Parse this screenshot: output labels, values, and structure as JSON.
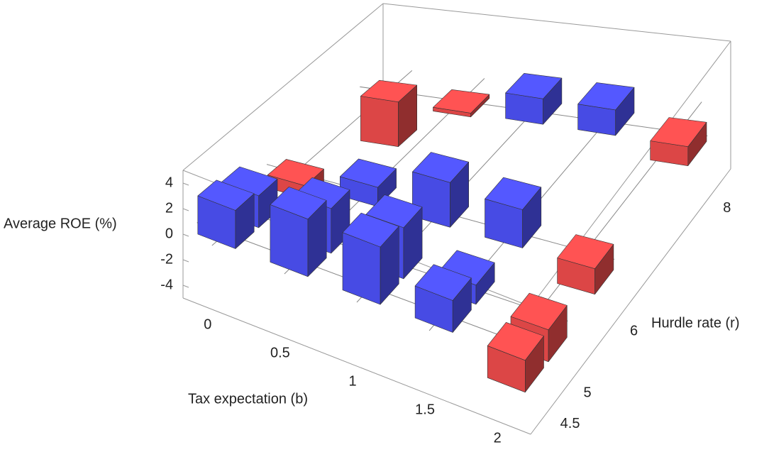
{
  "chart_data": {
    "type": "bar3d",
    "x_label": "Tax expectation (b)",
    "y_label": "Hurdle rate (r)",
    "z_label": "Average ROE (%)",
    "x": [
      0,
      0.5,
      1,
      1.5,
      2,
      0,
      0.5,
      1,
      1.5,
      2,
      0,
      0.5,
      1,
      1.5,
      2,
      0,
      0.5,
      1,
      1.5,
      2
    ],
    "y": [
      4.5,
      4.5,
      4.5,
      4.5,
      4.5,
      5,
      5,
      5,
      5,
      5,
      6,
      6,
      6,
      6,
      6,
      8,
      8,
      8,
      8,
      8
    ],
    "values": [
      3,
      4.5,
      4.5,
      2.5,
      -2.5,
      2.5,
      3.5,
      4,
      1.5,
      -2.5,
      -1,
      1.5,
      3.5,
      3,
      -2,
      -3.5,
      -0.3,
      2,
      2,
      -1.5
    ],
    "positive_color": "#4b4ff0",
    "negative_color": "#e84a4a",
    "xlim": [
      -0.2,
      2.2
    ],
    "ylim": [
      4.2,
      8.5
    ],
    "zlim": [
      -5,
      5
    ],
    "xticks": [
      0,
      0.5,
      1,
      1.5,
      2
    ],
    "yticks": [
      4.5,
      5,
      6,
      8
    ],
    "zticks": [
      -4,
      -2,
      0,
      2,
      4
    ]
  }
}
